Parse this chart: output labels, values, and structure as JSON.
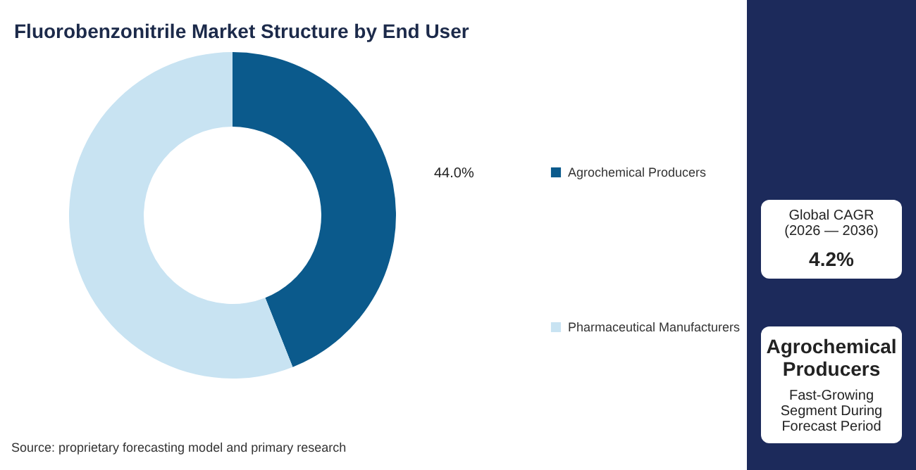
{
  "chart_data": [
    {
      "type": "donut",
      "title": "Fluorobenzonitrile Market Structure by End User",
      "categories": [
        "Agrochemical Producers",
        "Pharmaceutical Manufacturers"
      ],
      "values": [
        44.0,
        56.0
      ],
      "colors": [
        "#0b5a8c",
        "#c8e3f2"
      ],
      "value_labels": [
        "44.0%",
        null
      ],
      "legend": "right",
      "annotations": [
        "Source: proprietary forecasting model and primary research"
      ]
    },
    {
      "type": "other",
      "annotations": [
        "Global CAGR",
        "(2026 — 2036)",
        "4.2%",
        "Agrochemical Producers",
        "Fast-Growing Segment During Forecast Period"
      ]
    }
  ]
}
